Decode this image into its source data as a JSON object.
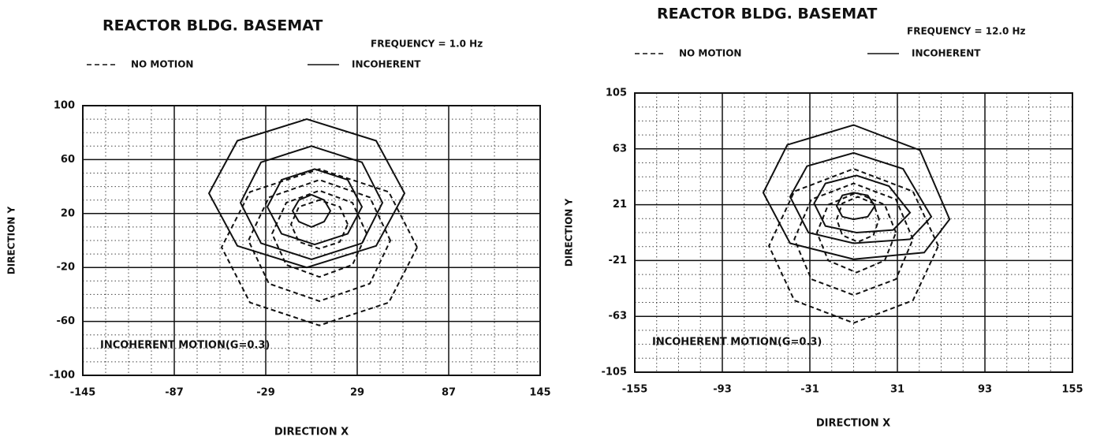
{
  "chart_data": [
    {
      "type": "contour",
      "title": "REACTOR BLDG. BASEMAT",
      "subtitle": "FREQUENCY = 1.0 Hz",
      "x_label": "DIRECTION X",
      "y_label": "DIRECTION Y",
      "annotation": "INCOHERENT MOTION(G=0.3)",
      "legend": [
        {
          "name": "NO MOTION",
          "style": "dashed"
        },
        {
          "name": "INCOHERENT",
          "style": "solid"
        }
      ],
      "xlim": [
        -145,
        145
      ],
      "xticks": [
        -145,
        -87,
        -29,
        29,
        87,
        145
      ],
      "ylim": [
        -100,
        100
      ],
      "yticks": [
        100,
        60,
        20,
        -20,
        -60,
        -100
      ],
      "grid": true,
      "minor_grid": 4,
      "color": "#111111",
      "series": [
        {
          "style": "solid",
          "x": [
            59,
            41,
            -3,
            -47,
            -65,
            -47,
            -3,
            41
          ],
          "values": [
            35,
            74,
            90,
            74,
            35,
            -4,
            -20,
            -4
          ]
        },
        {
          "style": "solid",
          "x": [
            45,
            32,
            0,
            -32,
            -45,
            -32,
            0,
            32
          ],
          "values": [
            28,
            58,
            70,
            58,
            28,
            -2,
            -14,
            -2
          ]
        },
        {
          "style": "solid",
          "x": [
            32,
            23,
            2,
            -19,
            -28,
            -19,
            2,
            23
          ],
          "values": [
            25,
            45,
            53,
            45,
            25,
            5,
            -3,
            5
          ]
        },
        {
          "style": "solid",
          "x": [
            12,
            8,
            0,
            -8,
            -12,
            -8,
            0,
            8
          ],
          "values": [
            22,
            30,
            34,
            30,
            22,
            14,
            10,
            14
          ]
        },
        {
          "style": "dashed",
          "x": [
            67,
            49,
            5,
            -39,
            -57,
            -39,
            5,
            49
          ],
          "values": [
            -5,
            36,
            53,
            36,
            -5,
            -46,
            -63,
            -46
          ]
        },
        {
          "style": "dashed",
          "x": [
            50,
            37,
            5,
            -27,
            -40,
            -27,
            5,
            37
          ],
          "values": [
            0,
            32,
            45,
            32,
            0,
            -32,
            -45,
            -32
          ]
        },
        {
          "style": "dashed",
          "x": [
            35,
            26,
            5,
            -16,
            -25,
            -16,
            5,
            26
          ],
          "values": [
            5,
            28,
            37,
            28,
            5,
            -18,
            -27,
            -18
          ]
        },
        {
          "style": "dashed",
          "x": [
            23,
            18,
            5,
            -8,
            -13,
            -8,
            5,
            18
          ],
          "values": [
            12,
            25,
            30,
            25,
            12,
            -1,
            -6,
            -1
          ]
        }
      ]
    },
    {
      "type": "contour",
      "title": "REACTOR BLDG. BASEMAT",
      "subtitle": "FREQUENCY = 12.0 Hz",
      "x_label": "DIRECTION X",
      "y_label": "DIRECTION Y",
      "annotation": "INCOHERENT MOTION(G=0.3)",
      "legend": [
        {
          "name": "NO MOTION",
          "style": "dashed"
        },
        {
          "name": "INCOHERENT",
          "style": "solid"
        }
      ],
      "xlim": [
        -155,
        155
      ],
      "xticks": [
        -155,
        -93,
        -31,
        31,
        93,
        155
      ],
      "ylim": [
        -105,
        105
      ],
      "yticks": [
        105,
        63,
        21,
        -21,
        -63,
        -105
      ],
      "grid": true,
      "minor_grid": 4,
      "color": "#111111",
      "series": [
        {
          "style": "solid",
          "x": [
            68,
            47,
            0,
            -47,
            -64,
            -45,
            0,
            50
          ],
          "values": [
            10,
            62,
            81,
            66,
            30,
            -8,
            -20,
            -15
          ]
        },
        {
          "style": "solid",
          "x": [
            55,
            35,
            0,
            -33,
            -45,
            -32,
            0,
            40
          ],
          "values": [
            12,
            48,
            60,
            50,
            27,
            0,
            -8,
            -5
          ]
        },
        {
          "style": "solid",
          "x": [
            40,
            25,
            2,
            -20,
            -28,
            -20,
            2,
            28
          ],
          "values": [
            15,
            35,
            43,
            37,
            22,
            5,
            0,
            2
          ]
        },
        {
          "style": "solid",
          "x": [
            15,
            10,
            0,
            -8,
            -12,
            -8,
            0,
            10
          ],
          "values": [
            20,
            28,
            30,
            28,
            20,
            12,
            10,
            12
          ]
        },
        {
          "style": "dashed",
          "x": [
            60,
            42,
            0,
            -42,
            -60,
            -42,
            0,
            42
          ],
          "values": [
            -10,
            31,
            48,
            31,
            -10,
            -51,
            -68,
            -51
          ]
        },
        {
          "style": "dashed",
          "x": [
            42,
            30,
            0,
            -30,
            -42,
            -30,
            0,
            30
          ],
          "values": [
            -5,
            25,
            37,
            25,
            -5,
            -35,
            -47,
            -35
          ]
        },
        {
          "style": "dashed",
          "x": [
            30,
            22,
            2,
            -18,
            -26,
            -18,
            2,
            22
          ],
          "values": [
            0,
            21,
            30,
            21,
            0,
            -21,
            -30,
            -21
          ]
        },
        {
          "style": "dashed",
          "x": [
            18,
            14,
            3,
            -8,
            -12,
            -8,
            3,
            14
          ],
          "values": [
            10,
            22,
            27,
            22,
            10,
            -2,
            -7,
            -2
          ]
        }
      ]
    }
  ]
}
